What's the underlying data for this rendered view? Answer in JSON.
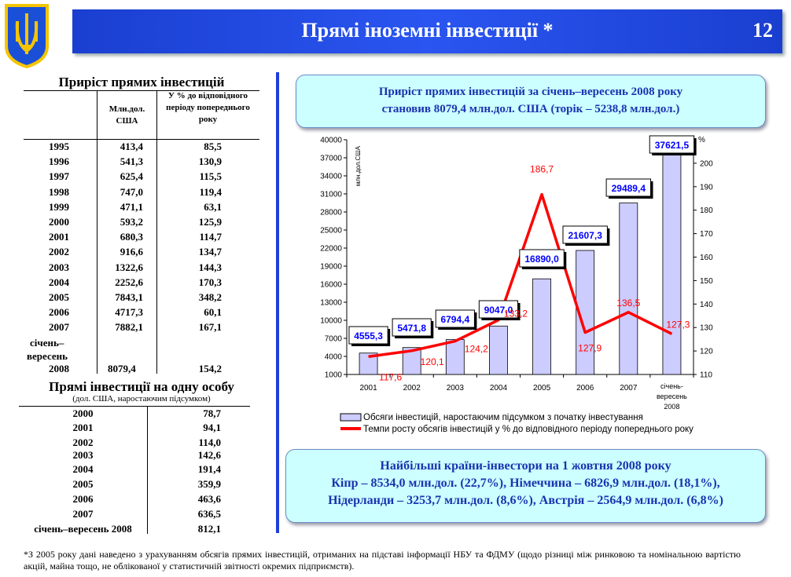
{
  "header": {
    "title": "Прямі іноземні інвестиції *",
    "page_number": "12",
    "emblem": "coat-of-arms-of-ukraine"
  },
  "table_growth": {
    "title": "Приріст прямих інвестицій",
    "col_mln": "Млн.дол. США",
    "col_pct": "У % до відповідного періоду попереднього року",
    "rows": [
      {
        "period": "1995",
        "mln": "413,4",
        "pct": "85,5"
      },
      {
        "period": "1996",
        "mln": "541,3",
        "pct": "130,9"
      },
      {
        "period": "1997",
        "mln": "625,4",
        "pct": "115,5"
      },
      {
        "period": "1998",
        "mln": "747,0",
        "pct": "119,4"
      },
      {
        "period": "1999",
        "mln": "471,1",
        "pct": "63,1"
      },
      {
        "period": "2000",
        "mln": "593,2",
        "pct": "125,9"
      },
      {
        "period": "2001",
        "mln": "680,3",
        "pct": "114,7"
      },
      {
        "period": "2002",
        "mln": "916,6",
        "pct": "134,7"
      },
      {
        "period": "2003",
        "mln": "1322,6",
        "pct": "144,3"
      },
      {
        "period": "2004",
        "mln": "2252,6",
        "pct": "170,3"
      },
      {
        "period": "2005",
        "mln": "7843,1",
        "pct": "348,2"
      },
      {
        "period": "2006",
        "mln": "4717,3",
        "pct": "60,1"
      },
      {
        "period": "2007",
        "mln": "7882,1",
        "pct": "167,1"
      }
    ],
    "last_row": {
      "period_line1": "січень–",
      "period_line2": "вересень",
      "period_line3": "2008",
      "mln": "8079,4",
      "pct": "154,2"
    }
  },
  "table_per_capita": {
    "title": "Прямі інвестиції на одну особу",
    "subtitle": "(дол. США, наростаючим підсумком)",
    "rows": [
      {
        "period": "2000",
        "value": "78,7"
      },
      {
        "period": "2001",
        "value": "94,1"
      },
      {
        "period": "2002",
        "value": "114,0"
      },
      {
        "period": "2003",
        "value": "142,6"
      },
      {
        "period": "2004",
        "value": "191,4"
      },
      {
        "period": "2005",
        "value": "359,9"
      },
      {
        "period": "2006",
        "value": "463,6"
      },
      {
        "period": "2007",
        "value": "636,5"
      },
      {
        "period": "січень–вересень 2008",
        "value": "812,1"
      }
    ]
  },
  "summary_box": {
    "line1": "Приріст прямих інвестицій за січень–вересень 2008 року",
    "line2": "становив  8079,4 млн.дол. США (торік – 5238,8 млн.дол.)"
  },
  "investors_box": {
    "title": "Найбільші країни-інвестори на 1 жовтня 2008 року",
    "line1": "Кіпр – 8534,0 млн.дол. (22,7%), Німеччина – 6826,9 млн.дол. (18,1%),",
    "line2": "Нідерланди – 3253,7 млн.дол. (8,6%), Австрія – 2564,9 млн.дол. (6,8%)"
  },
  "footnote": "*З 2005 року дані наведено з урахуванням обсягів прямих інвестицій, отриманих на підставі інформації НБУ та ФДМУ (щодо різниці між ринковою та номінальною вартістю акцій, майна тощо, не облікованої у статистичній звітності окремих підприємств).",
  "chart_data": {
    "type": "bar+line",
    "categories": [
      "2001",
      "2002",
      "2003",
      "2004",
      "2005",
      "2006",
      "2007",
      "січень-вересень 2008"
    ],
    "ylabel": "млн.дол.США",
    "y2label": "%",
    "ylim": [
      1000,
      40000
    ],
    "yticks": [
      1000,
      4000,
      7000,
      10000,
      13000,
      16000,
      19000,
      22000,
      25000,
      28000,
      31000,
      34000,
      37000,
      40000
    ],
    "y2lim": [
      110,
      210
    ],
    "y2ticks": [
      110,
      120,
      130,
      140,
      150,
      160,
      170,
      180,
      190,
      200
    ],
    "grid": false,
    "legend_position": "bottom",
    "series": [
      {
        "name": "Обсяги інвестицій, наростаючим підсумком з початку інвестування",
        "type": "bar",
        "axis": "left",
        "color": "#ccccff",
        "values": [
          4555.3,
          5471.8,
          6794.4,
          9047.0,
          16890.0,
          21607.3,
          29489.4,
          37621.5
        ],
        "labels": [
          "4555,3",
          "5471,8",
          "6794,4",
          "9047,0",
          "16890,0",
          "21607,3",
          "29489,4",
          "37621,5"
        ]
      },
      {
        "name": "Темпи росту обсягів інвестицій у % до відповідного періоду попереднього року",
        "type": "line",
        "axis": "right",
        "color": "#ff0000",
        "values": [
          117.6,
          120.1,
          124.2,
          133.2,
          186.7,
          127.9,
          136.5,
          127.3
        ],
        "labels": [
          "117,6",
          "120,1",
          "124,2",
          "133,2",
          "186,7",
          "127,9",
          "136,5",
          "127,3"
        ]
      }
    ]
  }
}
